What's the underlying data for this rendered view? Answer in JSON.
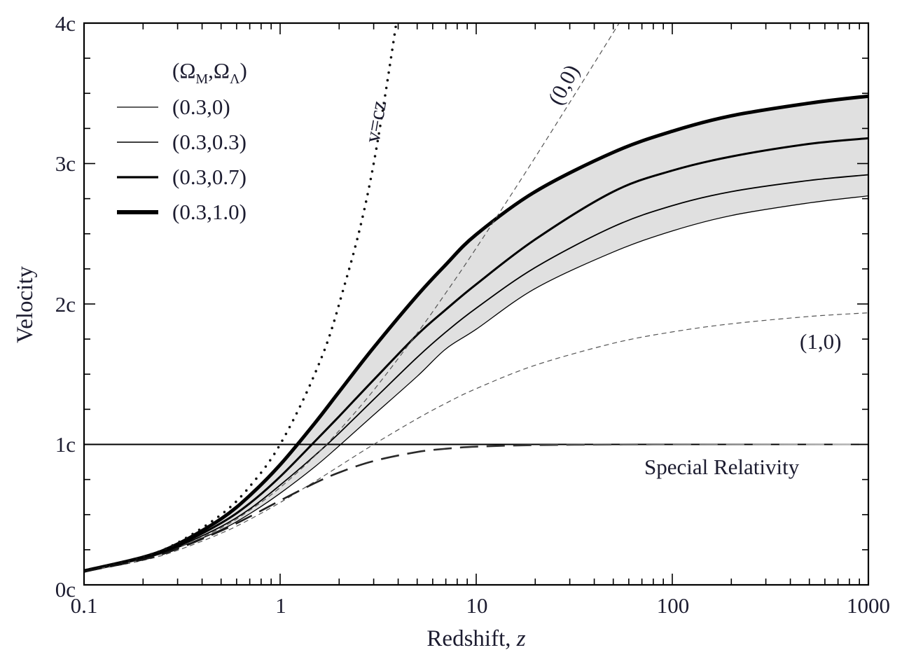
{
  "chart_data": {
    "type": "line",
    "xlabel": "Redshift, z",
    "xlabel_parts": {
      "text": "Redshift, ",
      "italic": "z"
    },
    "ylabel": "Velocity",
    "xscale": "log",
    "xlim": [
      0.1,
      1000
    ],
    "ylim": [
      0,
      4
    ],
    "x_ticks": [
      0.1,
      1,
      10,
      100,
      1000
    ],
    "x_tick_labels": [
      "0.1",
      "1",
      "10",
      "100",
      "1000"
    ],
    "y_ticks": [
      0,
      1,
      2,
      3,
      4
    ],
    "y_tick_labels": [
      "0c",
      "1c",
      "2c",
      "3c",
      "4c"
    ],
    "grid": false,
    "legend": {
      "placement": "top-left",
      "title": {
        "open": "(Ω",
        "sub1": "M",
        "mid": ",Ω",
        "sub2": "Λ",
        "close": ")"
      },
      "entries": [
        "(0.3,0)",
        "(0.3,0.3)",
        "(0.3,0.7)",
        "(0.3,1.0)"
      ]
    },
    "shaded_band": {
      "between": [
        "(0.3,1.0)",
        "(0.3,0)"
      ],
      "color": "#e0e0e0"
    },
    "x": [
      0.1,
      0.2,
      0.3,
      0.5,
      0.7,
      1,
      1.5,
      2,
      3,
      5,
      7,
      10,
      20,
      50,
      100,
      200,
      500,
      1000
    ],
    "series": [
      {
        "name": "(0.3,0)",
        "style": "solid",
        "color": "#000000",
        "values": [
          0.097,
          0.185,
          0.265,
          0.392,
          0.506,
          0.652,
          0.84,
          0.99,
          1.21,
          1.485,
          1.68,
          1.82,
          2.11,
          2.37,
          2.52,
          2.63,
          2.72,
          2.77
        ]
      },
      {
        "name": "(0.3,0.3)",
        "style": "solid",
        "color": "#000000",
        "values": [
          0.098,
          0.188,
          0.272,
          0.415,
          0.54,
          0.71,
          0.92,
          1.08,
          1.32,
          1.62,
          1.8,
          1.97,
          2.26,
          2.55,
          2.7,
          2.8,
          2.88,
          2.92
        ]
      },
      {
        "name": "(0.3,0.7)",
        "style": "solid",
        "color": "#000000",
        "values": [
          0.098,
          0.19,
          0.28,
          0.44,
          0.58,
          0.77,
          1.02,
          1.2,
          1.46,
          1.78,
          1.96,
          2.14,
          2.46,
          2.8,
          2.95,
          3.05,
          3.14,
          3.18
        ]
      },
      {
        "name": "(0.3,1.0)",
        "style": "solid",
        "color": "#000000",
        "values": [
          0.099,
          0.196,
          0.29,
          0.47,
          0.636,
          0.855,
          1.15,
          1.375,
          1.69,
          2.06,
          2.28,
          2.495,
          2.8,
          3.08,
          3.23,
          3.34,
          3.43,
          3.48
        ]
      },
      {
        "name": "(0,0)",
        "label": "(0,0)",
        "style": "dashed",
        "color": "#555555",
        "values": [
          0.095,
          0.182,
          0.262,
          0.405,
          0.531,
          0.693,
          0.916,
          1.099,
          1.386,
          1.792,
          2.079,
          2.398,
          3.045,
          3.932,
          4.615,
          null,
          null,
          null
        ]
      },
      {
        "name": "(1,0)",
        "label": "(1,0)",
        "style": "dashed",
        "color": "#555555",
        "values": [
          0.093,
          0.174,
          0.246,
          0.367,
          0.466,
          0.586,
          0.735,
          0.845,
          1.0,
          1.183,
          1.293,
          1.397,
          1.564,
          1.72,
          1.801,
          1.859,
          1.911,
          1.937
        ]
      },
      {
        "name": "Special Relativity",
        "label": "Special Relativity",
        "style": "long-dash",
        "color": "#111111",
        "values": [
          0.095,
          0.18,
          0.257,
          0.385,
          0.486,
          0.6,
          0.724,
          0.8,
          0.882,
          0.946,
          0.969,
          0.984,
          0.995,
          0.999,
          1.0,
          1.0,
          1.0,
          1.0
        ]
      },
      {
        "name": "v=cz",
        "label": "v=cz",
        "style": "dotted",
        "color": "#111111",
        "values": [
          0.1,
          0.2,
          0.3,
          0.5,
          0.7,
          1,
          1.5,
          2,
          3,
          5,
          null,
          null,
          null,
          null,
          null,
          null,
          null,
          null
        ]
      }
    ],
    "reference_line": {
      "y": 1,
      "style": "solid",
      "color": "#000000"
    }
  }
}
